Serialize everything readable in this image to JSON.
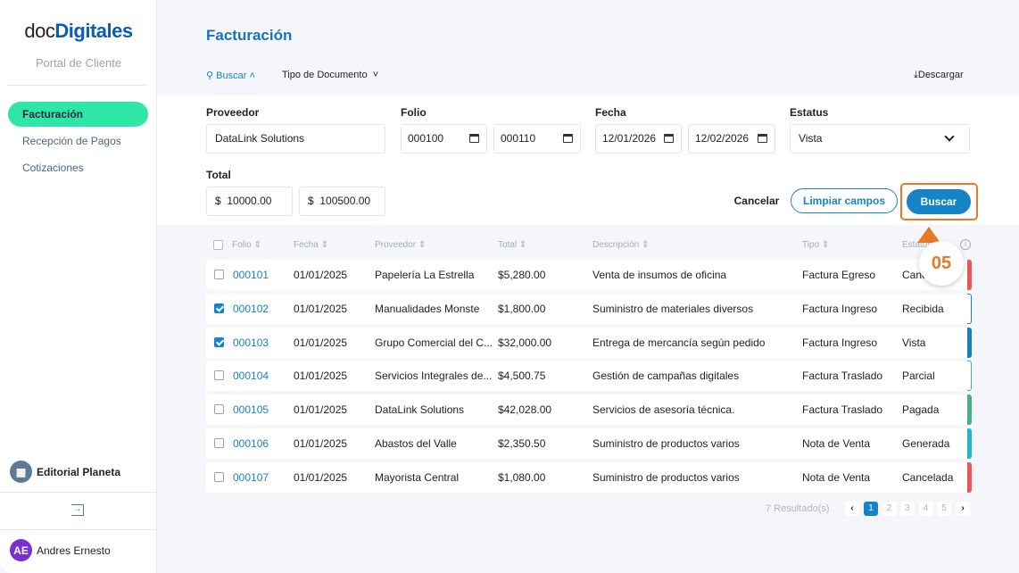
{
  "sidebar": {
    "logo_a": "doc",
    "logo_b": "Digitales",
    "portal": "Portal de Cliente",
    "items": [
      {
        "label": "Facturación"
      },
      {
        "label": "Recepción de Pagos"
      },
      {
        "label": "Cotizaciones"
      }
    ],
    "org": "Editorial Planeta",
    "user_initials": "AE",
    "user": "Andres Ernesto"
  },
  "header": {
    "title": "Facturación",
    "search": "Buscar",
    "doc_type": "Tipo de Documento",
    "download": "Descargar"
  },
  "filters": {
    "proveedor_label": "Proveedor",
    "proveedor": "DataLink Solutions",
    "folio_label": "Folio",
    "folio_from": "000100",
    "folio_to": "000110",
    "fecha_label": "Fecha",
    "fecha_from": "12/01/2026",
    "fecha_to": "12/02/2026",
    "estatus_label": "Estatus",
    "estatus": "Vista",
    "total_label": "Total",
    "currency": "$",
    "total_from": "10000.00",
    "total_to": "100500.00",
    "cancel": "Cancelar",
    "clear": "Limpiar campos",
    "search": "Buscar"
  },
  "annotation": {
    "step": "05",
    "color": "#e8792a"
  },
  "table": {
    "headers": [
      "Folio",
      "Fecha",
      "Proveedor",
      "Total",
      "Descripción",
      "Tipo",
      "Estatus"
    ],
    "rows": [
      {
        "checked": false,
        "folio": "000101",
        "fecha": "01/01/2025",
        "proveedor": "Papelería La Estrella",
        "total": "$5,280.00",
        "desc": "Venta de insumos de oficina",
        "tipo": "Factura Egreso",
        "estatus": "Cancelada",
        "color": "#e85858"
      },
      {
        "checked": true,
        "folio": "000102",
        "fecha": "01/01/2025",
        "proveedor": "Manualidades Monste",
        "total": "$1,800.00",
        "desc": "Suministro de materiales diversos",
        "tipo": "Factura Ingreso",
        "estatus": "Recibida",
        "color": "outline:#1a7fb5"
      },
      {
        "checked": true,
        "folio": "000103",
        "fecha": "01/01/2025",
        "proveedor": "Grupo Comercial del C...",
        "total": "$32,000.00",
        "desc": "Entrega de mercancía según pedido",
        "tipo": "Factura Ingreso",
        "estatus": "Vista",
        "color": "#1a7fb5"
      },
      {
        "checked": false,
        "folio": "000104",
        "fecha": "01/01/2025",
        "proveedor": "Servicios Integrales de...",
        "total": "$4,500.75",
        "desc": "Gestión de campañas digitales",
        "tipo": "Factura Traslado",
        "estatus": "Parcial",
        "color": "outline:#4caf86"
      },
      {
        "checked": false,
        "folio": "000105",
        "fecha": "01/01/2025",
        "proveedor": "DataLink Solutions",
        "total": "$42,028.00",
        "desc": "Servicios de asesoría técnica.",
        "tipo": "Factura Traslado",
        "estatus": "Pagada",
        "color": "#4caf86"
      },
      {
        "checked": false,
        "folio": "000106",
        "fecha": "01/01/2025",
        "proveedor": "Abastos del Valle",
        "total": "$2,350.50",
        "desc": "Suministro de productos varios",
        "tipo": "Nota de Venta",
        "estatus": "Generada",
        "color": "#1fb8c8"
      },
      {
        "checked": false,
        "folio": "000107",
        "fecha": "01/01/2025",
        "proveedor": "Mayorista Central",
        "total": "$1,080.00",
        "desc": "Suministro de productos varios",
        "tipo": "Nota de Venta",
        "estatus": "Cancelada",
        "color": "#e85858"
      }
    ]
  },
  "pagination": {
    "results": "7 Resultado(s)",
    "pages": [
      "1",
      "2",
      "3",
      "4",
      "5"
    ],
    "current": "1"
  }
}
